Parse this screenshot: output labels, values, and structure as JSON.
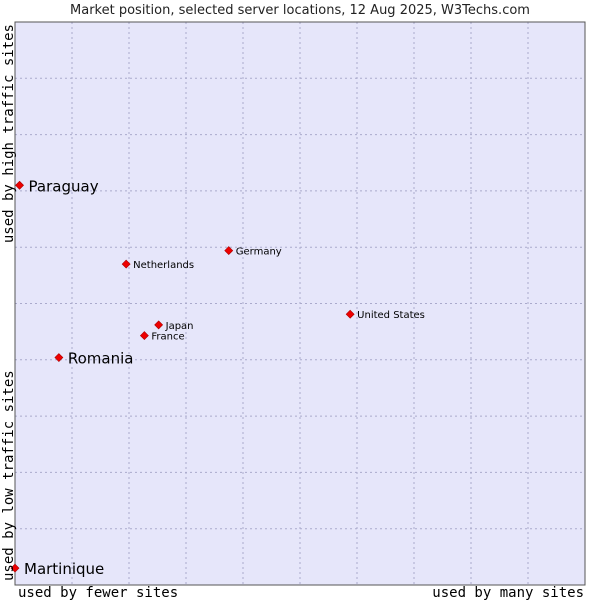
{
  "chart_data": {
    "type": "scatter",
    "title": "Market position, selected server locations, 12 Aug 2025, W3Techs.com",
    "xlabel_left": "used by fewer sites",
    "xlabel_right": "used by many sites",
    "ylabel_bottom": "used by low traffic sites",
    "ylabel_top": "used by high traffic sites",
    "xlim": [
      0,
      10
    ],
    "ylim": [
      0,
      10
    ],
    "grid": true,
    "colors": {
      "plot_bg": "#e6e6fa",
      "grid": "#aaaacc",
      "border": "#555555",
      "marker": "#ee0000"
    },
    "points": [
      {
        "name": "Paraguay",
        "x": 0.08,
        "y": 7.1,
        "emphasis": true
      },
      {
        "name": "Netherlands",
        "x": 1.95,
        "y": 5.7,
        "emphasis": false
      },
      {
        "name": "Germany",
        "x": 3.75,
        "y": 5.94,
        "emphasis": false
      },
      {
        "name": "United States",
        "x": 5.88,
        "y": 4.81,
        "emphasis": false
      },
      {
        "name": "Japan",
        "x": 2.52,
        "y": 4.62,
        "emphasis": false
      },
      {
        "name": "France",
        "x": 2.27,
        "y": 4.43,
        "emphasis": false
      },
      {
        "name": "Romania",
        "x": 0.77,
        "y": 4.04,
        "emphasis": true
      },
      {
        "name": "Martinique",
        "x": 0.0,
        "y": 0.3,
        "emphasis": true
      }
    ]
  }
}
